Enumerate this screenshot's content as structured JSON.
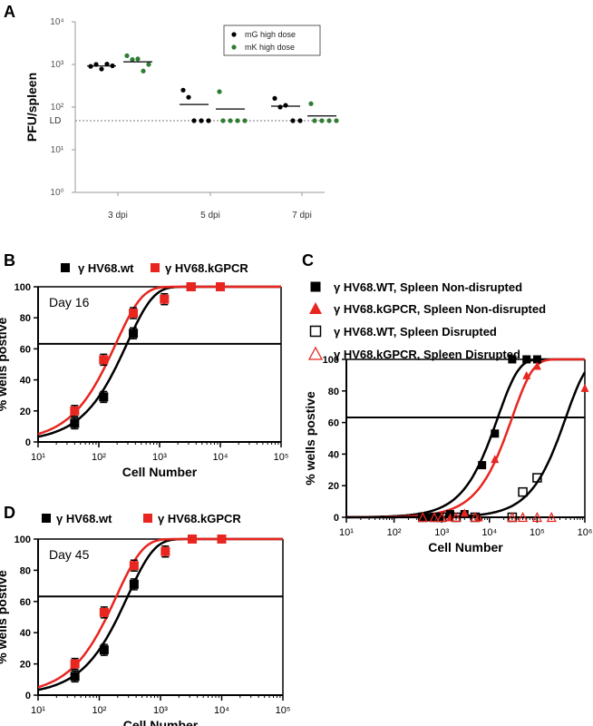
{
  "colors": {
    "black": "#000000",
    "red": "#e8251f",
    "green": "#2e7d32",
    "gray": "#9a9a9a"
  },
  "chart_data": [
    {
      "panel": "A",
      "type": "scatter",
      "ylabel": "PFU/spleen",
      "yscale": "log",
      "ylim": [
        1,
        10000
      ],
      "y_tick_labels": [
        "10⁰",
        "10¹",
        "10²",
        "10³",
        "10⁴"
      ],
      "categories": [
        "3 dpi",
        "5 dpi",
        "7 dpi"
      ],
      "limit_of_detection": {
        "label": "LD",
        "value": 48
      },
      "legend_position": "top-right",
      "series": [
        {
          "name": "mG high dose",
          "color": "#000000",
          "groups": [
            [
              900,
              1000,
              780,
              1020,
              930
            ],
            [
              250,
              170,
              48,
              48,
              48
            ],
            [
              160,
              100,
              110,
              48,
              48
            ]
          ],
          "means": [
            920,
            115,
            105
          ]
        },
        {
          "name": "mK high dose",
          "color": "#2e7d32",
          "groups": [
            [
              1600,
              1300,
              1350,
              700,
              1000
            ],
            [
              230,
              48,
              48,
              48,
              48
            ],
            [
              120,
              48,
              48,
              48,
              48
            ]
          ],
          "means": [
            1150,
            90,
            62
          ]
        }
      ]
    },
    {
      "panel": "B",
      "type": "scatter",
      "annotation": "Day 16",
      "xlabel": "Cell Number",
      "ylabel": "% wells postive",
      "xscale": "log",
      "xlim": [
        10,
        100000
      ],
      "ylim": [
        0,
        100
      ],
      "x_tick_labels": [
        "10¹",
        "10²",
        "10³",
        "10⁴",
        "10⁵"
      ],
      "y_tick_labels": [
        "0",
        "20",
        "40",
        "60",
        "80",
        "100"
      ],
      "reference_line": 63.2,
      "legend_position": "top",
      "series": [
        {
          "name": "γ HV68.wt",
          "color": "#000000",
          "x": [
            40,
            120,
            370,
            3300,
            10000
          ],
          "y": [
            12,
            29,
            70,
            100,
            100
          ],
          "fit_ec63": 290
        },
        {
          "name": "γ HV68.kGPCR",
          "color": "#e8251f",
          "x": [
            40,
            120,
            370,
            1200,
            3300,
            10000
          ],
          "y": [
            20,
            53,
            83,
            92,
            100,
            100
          ],
          "fit_ec63": 190
        }
      ]
    },
    {
      "panel": "C",
      "type": "scatter",
      "xlabel": "Cell Number",
      "ylabel": "% wells postive",
      "xscale": "log",
      "xlim": [
        10,
        1000000
      ],
      "ylim": [
        0,
        100
      ],
      "x_tick_labels": [
        "10¹",
        "10²",
        "10³",
        "10⁴",
        "10⁵",
        "10⁶"
      ],
      "y_tick_labels": [
        "0",
        "20",
        "40",
        "60",
        "80",
        "100"
      ],
      "reference_line": 63.2,
      "legend_position": "top",
      "series": [
        {
          "name": "γ HV68.WT, Spleen Non-disrupted",
          "color": "#000000",
          "marker": "filled-square",
          "x": [
            400,
            600,
            900,
            1500,
            3000,
            7000,
            13000,
            30000,
            60000,
            100000
          ],
          "y": [
            0,
            0,
            0,
            2,
            2,
            33,
            53,
            100,
            100,
            100
          ],
          "fit_ec63": 15000
        },
        {
          "name": "γ HV68.kGPCR, Spleen Non-disrupted",
          "color": "#e8251f",
          "marker": "filled-triangle",
          "x": [
            1500,
            3000,
            6000,
            13000,
            60000,
            100000,
            1000000
          ],
          "y": [
            0,
            3,
            0,
            37,
            90,
            96,
            82
          ],
          "fit_ec63": 30000
        },
        {
          "name": "γ HV68.WT, Spleen Disrupted",
          "color": "#000000",
          "marker": "open-square",
          "x": [
            400,
            700,
            1000,
            2000,
            5000,
            30000,
            50000,
            100000
          ],
          "y": [
            0,
            0,
            0,
            0,
            0,
            0,
            16,
            25
          ],
          "fit_ec63": 400000
        },
        {
          "name": "γ HV68.kGPCR,  Spleen Disrupted",
          "color": "#e8251f",
          "marker": "open-triangle",
          "x": [
            400,
            700,
            1000,
            2000,
            5000,
            30000,
            50000,
            100000,
            200000
          ],
          "y": [
            0,
            0,
            0,
            0,
            0,
            0,
            0,
            0,
            0
          ]
        }
      ]
    },
    {
      "panel": "D",
      "type": "scatter",
      "annotation": "Day 45",
      "xlabel": "Cell Number",
      "ylabel": "% wells postive",
      "xscale": "log",
      "xlim": [
        10,
        100000
      ],
      "ylim": [
        0,
        100
      ],
      "x_tick_labels": [
        "10¹",
        "10²",
        "10³",
        "10⁴",
        "10⁵"
      ],
      "y_tick_labels": [
        "0",
        "20",
        "40",
        "60",
        "80",
        "100"
      ],
      "reference_line": 63.2,
      "legend_position": "top",
      "series": [
        {
          "name": "γ HV68.wt",
          "color": "#000000",
          "x": [
            40,
            120,
            370,
            3300,
            10000
          ],
          "y": [
            12,
            29,
            71,
            100,
            100
          ],
          "fit_ec63": 290
        },
        {
          "name": "γ HV68.kGPCR",
          "color": "#e8251f",
          "x": [
            40,
            120,
            370,
            1200,
            3300,
            10000
          ],
          "y": [
            20,
            53,
            83,
            92,
            100,
            100
          ],
          "fit_ec63": 190
        }
      ]
    }
  ]
}
